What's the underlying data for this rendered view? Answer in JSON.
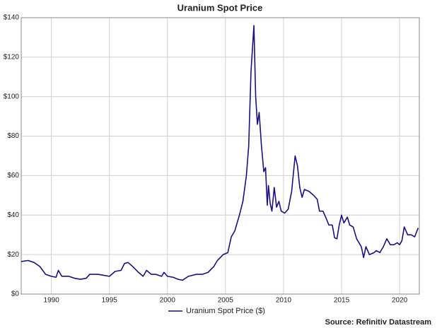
{
  "chart_data": {
    "type": "line",
    "title": "Uranium Spot Price",
    "source": "Source: Refinitiv Datastream",
    "legend": "bottom",
    "grid": true,
    "xlim": [
      1987.4,
      2021.7
    ],
    "xticks": [
      1990,
      1995,
      2000,
      2005,
      2010,
      2015,
      2020
    ],
    "ylim": [
      0,
      140
    ],
    "yticks": [
      {
        "value": 0,
        "label": "$0"
      },
      {
        "value": 20,
        "label": "$20"
      },
      {
        "value": 40,
        "label": "$40"
      },
      {
        "value": 60,
        "label": "$60"
      },
      {
        "value": 80,
        "label": "$80"
      },
      {
        "value": 100,
        "label": "$100"
      },
      {
        "value": 120,
        "label": "$120"
      },
      {
        "value": 140,
        "label": "$140"
      }
    ],
    "x": [
      1987.4,
      1988.0,
      1988.5,
      1989.0,
      1989.5,
      1990.0,
      1990.4,
      1990.6,
      1990.9,
      1991.5,
      1992.0,
      1992.5,
      1993.0,
      1993.3,
      1994.0,
      1994.5,
      1995.0,
      1995.5,
      1996.0,
      1996.3,
      1996.6,
      1997.0,
      1997.5,
      1997.9,
      1998.2,
      1998.6,
      1999.0,
      1999.5,
      1999.7,
      2000.0,
      2000.5,
      2000.9,
      2001.3,
      2001.8,
      2002.5,
      2003.0,
      2003.5,
      2004.0,
      2004.3,
      2004.8,
      2005.2,
      2005.5,
      2005.8,
      2006.2,
      2006.5,
      2006.8,
      2007.0,
      2007.2,
      2007.45,
      2007.6,
      2007.75,
      2007.9,
      2008.1,
      2008.3,
      2008.45,
      2008.6,
      2008.7,
      2008.85,
      2009.0,
      2009.2,
      2009.4,
      2009.6,
      2009.8,
      2010.1,
      2010.4,
      2010.7,
      2011.0,
      2011.2,
      2011.4,
      2011.6,
      2011.8,
      2012.2,
      2012.6,
      2012.9,
      2013.1,
      2013.4,
      2013.7,
      2013.9,
      2014.2,
      2014.4,
      2014.6,
      2014.8,
      2015.0,
      2015.2,
      2015.5,
      2015.7,
      2016.0,
      2016.3,
      2016.7,
      2016.9,
      2017.1,
      2017.4,
      2017.8,
      2018.0,
      2018.3,
      2018.6,
      2018.9,
      2019.2,
      2019.5,
      2019.8,
      2020.0,
      2020.2,
      2020.4,
      2020.7,
      2021.0,
      2021.3,
      2021.5,
      2021.6
    ],
    "series": [
      {
        "name": "Uranium Spot Price ($)",
        "color": "#1a1080",
        "values": [
          16.5,
          17,
          16,
          14,
          10,
          9,
          8.5,
          12,
          9,
          9,
          8,
          7.5,
          8,
          10,
          10,
          9.5,
          9,
          11.5,
          12,
          15.5,
          16,
          14,
          11,
          9,
          12,
          10,
          10,
          9,
          11,
          9,
          8.5,
          7.5,
          7,
          9,
          10,
          10,
          11,
          14,
          17,
          20,
          21,
          29,
          32,
          40,
          47,
          60,
          75,
          113,
          136,
          100,
          86,
          92,
          75,
          62,
          64,
          45,
          55,
          46,
          42,
          54,
          44,
          47,
          42,
          41,
          43,
          52,
          70,
          65,
          54,
          49,
          53,
          52,
          50,
          48,
          42,
          42,
          38,
          35,
          35,
          28.5,
          28,
          35,
          40,
          36,
          39,
          35,
          34,
          28,
          24,
          18.5,
          24,
          20,
          21,
          22,
          21,
          24,
          28,
          25,
          25,
          26,
          25,
          27,
          34,
          30,
          30,
          29,
          32,
          33.5
        ]
      }
    ]
  }
}
